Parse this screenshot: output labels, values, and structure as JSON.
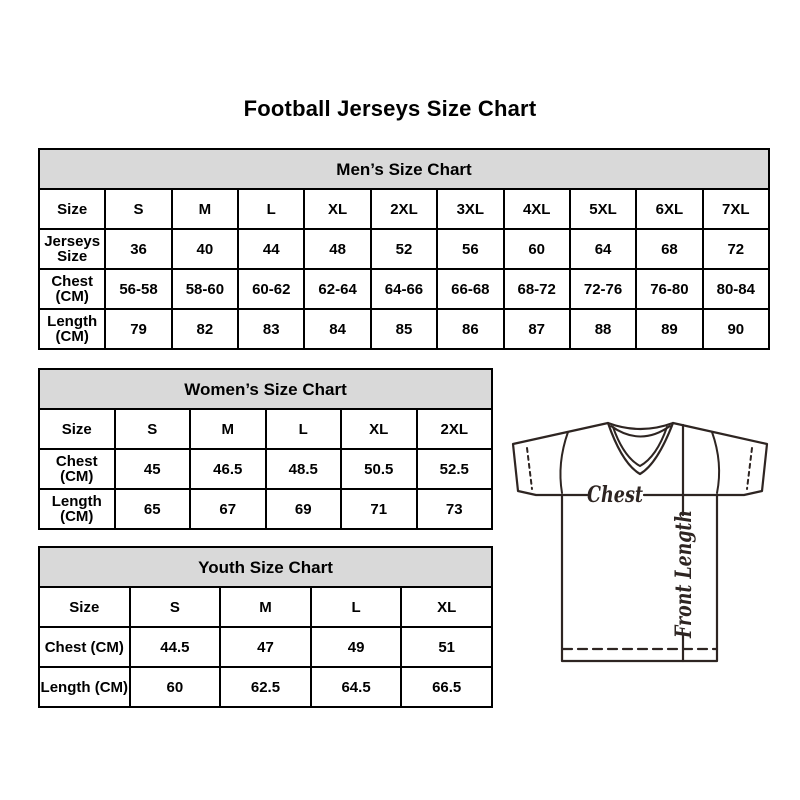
{
  "page": {
    "title": "Football Jerseys Size Chart"
  },
  "chart_data": [
    {
      "type": "table",
      "id": "mens",
      "title": "Men’s Size Chart",
      "columns": [
        "Size",
        "S",
        "M",
        "L",
        "XL",
        "2XL",
        "3XL",
        "4XL",
        "5XL",
        "6XL",
        "7XL"
      ],
      "rows": [
        [
          "Jerseys Size",
          "36",
          "40",
          "44",
          "48",
          "52",
          "56",
          "60",
          "64",
          "68",
          "72"
        ],
        [
          "Chest (CM)",
          "56-58",
          "58-60",
          "60-62",
          "62-64",
          "64-66",
          "66-68",
          "68-72",
          "72-76",
          "76-80",
          "80-84"
        ],
        [
          "Length (CM)",
          "79",
          "82",
          "83",
          "84",
          "85",
          "86",
          "87",
          "88",
          "89",
          "90"
        ]
      ]
    },
    {
      "type": "table",
      "id": "womens",
      "title": "Women’s Size Chart",
      "columns": [
        "Size",
        "S",
        "M",
        "L",
        "XL",
        "2XL"
      ],
      "rows": [
        [
          "Chest (CM)",
          "45",
          "46.5",
          "48.5",
          "50.5",
          "52.5"
        ],
        [
          "Length (CM)",
          "65",
          "67",
          "69",
          "71",
          "73"
        ]
      ]
    },
    {
      "type": "table",
      "id": "youth",
      "title": "Youth Size Chart",
      "columns": [
        "Size",
        "S",
        "M",
        "L",
        "XL"
      ],
      "rows": [
        [
          "Chest (CM)",
          "44.5",
          "47",
          "49",
          "51"
        ],
        [
          "Length (CM)",
          "60",
          "62.5",
          "64.5",
          "66.5"
        ]
      ]
    }
  ],
  "diagram": {
    "chest_label": "Chest",
    "front_length_label": "Front Length"
  },
  "colors": {
    "header_bg": "#d9d9d9",
    "border": "#000000",
    "jersey_line": "#2e2522"
  }
}
